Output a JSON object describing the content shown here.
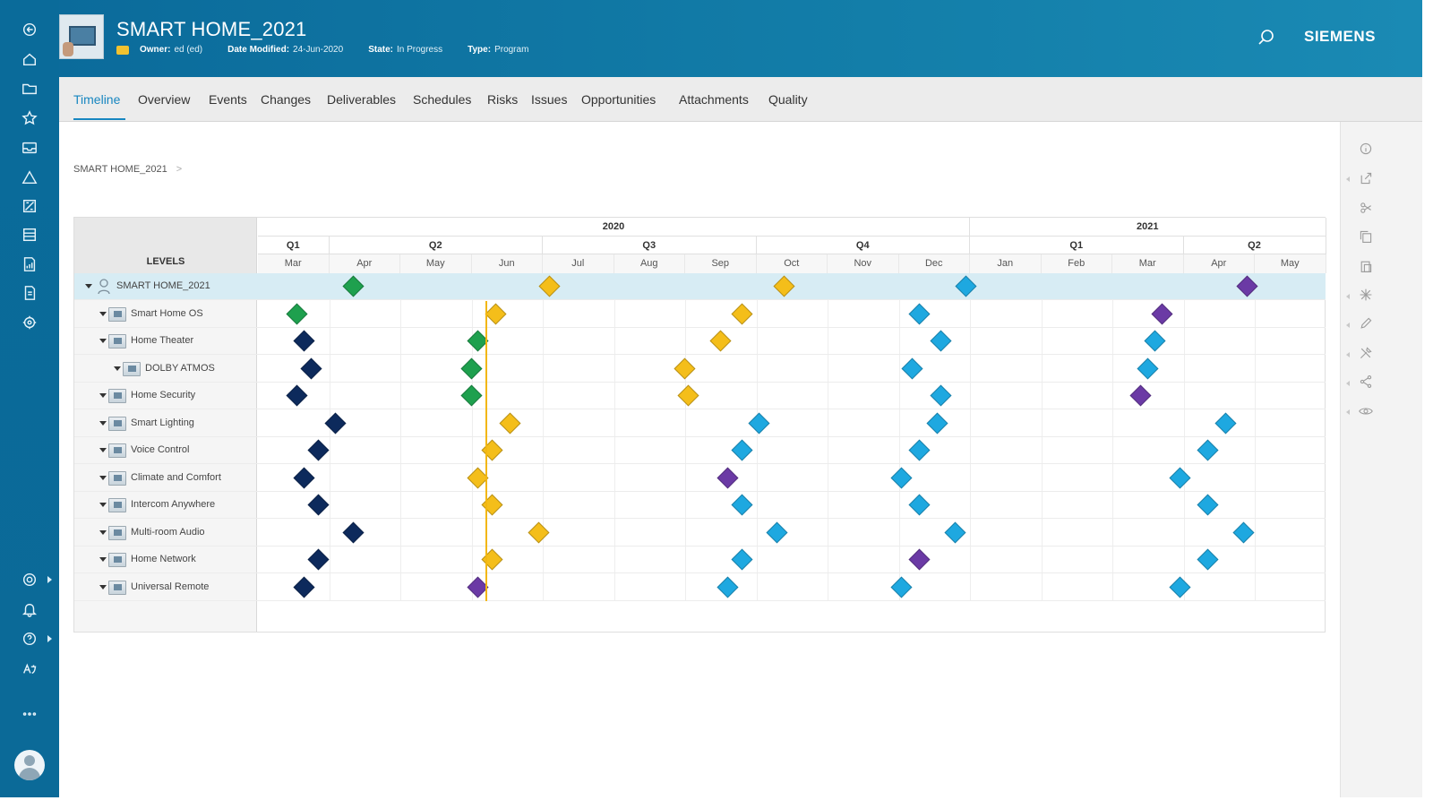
{
  "app": {
    "title": "SMART HOME_2021",
    "brand": "SIEMENS",
    "meta": [
      {
        "label": "Owner:",
        "value": "ed (ed)"
      },
      {
        "label": "Date Modified:",
        "value": "24-Jun-2020"
      },
      {
        "label": "State:",
        "value": "In Progress"
      },
      {
        "label": "Type:",
        "value": "Program"
      }
    ]
  },
  "tabs": [
    "Timeline",
    "Overview",
    "Events",
    "Changes",
    "Deliverables",
    "Schedules",
    "Risks",
    "Issues",
    "Opportunities",
    "Attachments",
    "Quality"
  ],
  "active_tab": "Timeline",
  "breadcrumb": {
    "item": "SMART HOME_2021",
    "chevron": ">"
  },
  "levels_header": "LEVELS",
  "years": [
    "2020",
    "2021"
  ],
  "quarters": [
    "Q1",
    "Q2",
    "Q3",
    "Q4",
    "Q1",
    "Q2"
  ],
  "months": [
    "Mar",
    "Apr",
    "May",
    "Jun",
    "Jul",
    "Aug",
    "Sep",
    "Oct",
    "Nov",
    "Dec",
    "Jan",
    "Feb",
    "Mar",
    "Apr",
    "May"
  ],
  "colors": {
    "dark": "#0d2a5c",
    "green": "#1ea04e",
    "yellow": "#f4be1a",
    "cyan": "#1ea8e0",
    "purple": "#6b3aa5",
    "today": "#f2b711"
  },
  "today_month_offset": 3.2,
  "rows": [
    {
      "label": "SMART HOME_2021",
      "indent": 0,
      "selected": true,
      "kind": "program",
      "events": [
        {
          "m": 1.35,
          "c": "green"
        },
        {
          "m": 4.1,
          "c": "yellow"
        },
        {
          "m": 7.4,
          "c": "yellow"
        },
        {
          "m": 9.95,
          "c": "cyan"
        },
        {
          "m": 13.9,
          "c": "purple"
        }
      ]
    },
    {
      "label": "Smart Home OS",
      "indent": 1,
      "events": [
        {
          "m": 0.55,
          "c": "green"
        },
        {
          "m": 3.35,
          "c": "yellow"
        },
        {
          "m": 6.8,
          "c": "yellow"
        },
        {
          "m": 9.3,
          "c": "cyan"
        },
        {
          "m": 12.7,
          "c": "purple"
        }
      ]
    },
    {
      "label": "Home Theater",
      "indent": 1,
      "events": [
        {
          "m": 0.65,
          "c": "dark"
        },
        {
          "m": 3.1,
          "c": "green"
        },
        {
          "m": 6.5,
          "c": "yellow"
        },
        {
          "m": 9.6,
          "c": "cyan"
        },
        {
          "m": 12.6,
          "c": "cyan"
        }
      ]
    },
    {
      "label": "DOLBY ATMOS",
      "indent": 2,
      "events": [
        {
          "m": 0.75,
          "c": "dark"
        },
        {
          "m": 3.0,
          "c": "green"
        },
        {
          "m": 6.0,
          "c": "yellow"
        },
        {
          "m": 9.2,
          "c": "cyan"
        },
        {
          "m": 12.5,
          "c": "cyan"
        }
      ]
    },
    {
      "label": "Home Security",
      "indent": 1,
      "events": [
        {
          "m": 0.55,
          "c": "dark"
        },
        {
          "m": 3.0,
          "c": "green"
        },
        {
          "m": 6.05,
          "c": "yellow"
        },
        {
          "m": 9.6,
          "c": "cyan"
        },
        {
          "m": 12.4,
          "c": "purple"
        }
      ]
    },
    {
      "label": "Smart Lighting",
      "indent": 1,
      "events": [
        {
          "m": 1.1,
          "c": "dark"
        },
        {
          "m": 3.55,
          "c": "yellow"
        },
        {
          "m": 7.05,
          "c": "cyan"
        },
        {
          "m": 9.55,
          "c": "cyan"
        },
        {
          "m": 13.6,
          "c": "cyan"
        }
      ]
    },
    {
      "label": "Voice Control",
      "indent": 1,
      "events": [
        {
          "m": 0.85,
          "c": "dark"
        },
        {
          "m": 3.3,
          "c": "yellow"
        },
        {
          "m": 6.8,
          "c": "cyan"
        },
        {
          "m": 9.3,
          "c": "cyan"
        },
        {
          "m": 13.35,
          "c": "cyan"
        }
      ]
    },
    {
      "label": "Climate and Comfort",
      "indent": 1,
      "events": [
        {
          "m": 0.65,
          "c": "dark"
        },
        {
          "m": 3.1,
          "c": "yellow"
        },
        {
          "m": 6.6,
          "c": "purple"
        },
        {
          "m": 9.05,
          "c": "cyan"
        },
        {
          "m": 12.95,
          "c": "cyan"
        }
      ]
    },
    {
      "label": "Intercom Anywhere",
      "indent": 1,
      "events": [
        {
          "m": 0.85,
          "c": "dark"
        },
        {
          "m": 3.3,
          "c": "yellow"
        },
        {
          "m": 6.8,
          "c": "cyan"
        },
        {
          "m": 9.3,
          "c": "cyan"
        },
        {
          "m": 13.35,
          "c": "cyan"
        }
      ]
    },
    {
      "label": "Multi-room Audio",
      "indent": 1,
      "events": [
        {
          "m": 1.35,
          "c": "dark"
        },
        {
          "m": 3.95,
          "c": "yellow"
        },
        {
          "m": 7.3,
          "c": "cyan"
        },
        {
          "m": 9.8,
          "c": "cyan"
        },
        {
          "m": 13.85,
          "c": "cyan"
        }
      ]
    },
    {
      "label": "Home Network",
      "indent": 1,
      "events": [
        {
          "m": 0.85,
          "c": "dark"
        },
        {
          "m": 3.3,
          "c": "yellow"
        },
        {
          "m": 6.8,
          "c": "cyan"
        },
        {
          "m": 9.3,
          "c": "purple"
        },
        {
          "m": 13.35,
          "c": "cyan"
        }
      ]
    },
    {
      "label": "Universal Remote",
      "indent": 1,
      "events": [
        {
          "m": 0.65,
          "c": "dark"
        },
        {
          "m": 3.1,
          "c": "purple"
        },
        {
          "m": 6.6,
          "c": "cyan"
        },
        {
          "m": 9.05,
          "c": "cyan"
        },
        {
          "m": 12.95,
          "c": "cyan"
        }
      ]
    }
  ],
  "rail_icons": [
    "back-icon",
    "home-icon",
    "folder-icon",
    "star-icon",
    "inbox-icon",
    "change-icon",
    "schedule-icon",
    "worklist-icon",
    "report-icon",
    "document-icon",
    "workflow-icon"
  ],
  "rail_bottom_icons": [
    "settings-icon",
    "bell-icon",
    "help-icon",
    "language-icon",
    "more-icon"
  ],
  "right_icons": [
    "info-icon",
    "share-icon",
    "cut-icon",
    "copy-icon",
    "paste-icon",
    "new-icon",
    "edit-icon",
    "tools-icon",
    "connect-icon",
    "view-icon"
  ]
}
